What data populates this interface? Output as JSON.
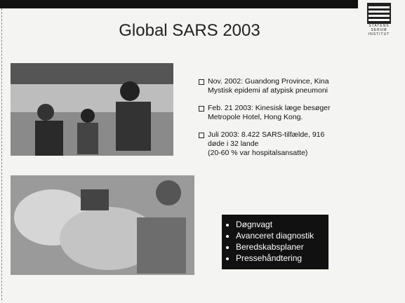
{
  "header": {
    "title": "Global SARS 2003",
    "logo": [
      "STATENS",
      "SERUM",
      "INSTITUT"
    ]
  },
  "bullets": [
    [
      "Nov. 2002: Guandong Province, Kina",
      "Mystisk epidemi af atypisk pneumoni"
    ],
    [
      "Feb. 21 2003: Kinesisk læge besøger",
      "Metropole Hotel, Hong Kong."
    ],
    [
      "Juli 2003: 8.422 SARS-tilfælde, 916",
      "døde i 32 lande",
      "(20-60 % var hospitalsansatte)"
    ]
  ],
  "box": [
    "Døgnvagt",
    "Avanceret diagnostik",
    "Beredskabsplaner",
    "Pressehåndtering"
  ]
}
